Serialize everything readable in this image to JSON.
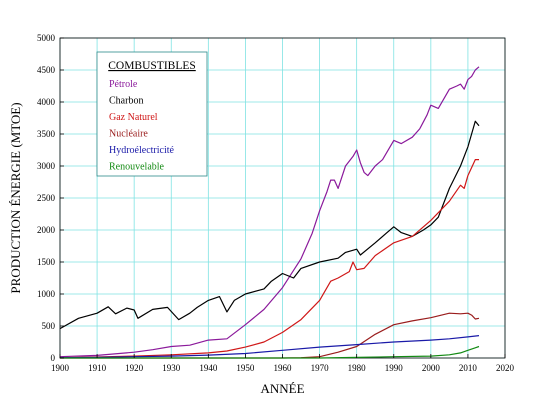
{
  "chart_data": {
    "type": "line",
    "title": "",
    "xlabel": "ANNÉE",
    "ylabel": "PRODUCTION ÉNERGIE (MTOE)",
    "xlim": [
      1900,
      2020
    ],
    "ylim": [
      0,
      5000
    ],
    "xticks": [
      1900,
      1910,
      1920,
      1930,
      1940,
      1950,
      1960,
      1970,
      1980,
      1990,
      2000,
      2010,
      2020
    ],
    "yticks": [
      0,
      500,
      1000,
      1500,
      2000,
      2500,
      3000,
      3500,
      4000,
      4500,
      5000
    ],
    "grid": true,
    "legend": {
      "title": "COMBUSTIBLES",
      "placement": "top-left"
    },
    "series": [
      {
        "name": "Pétrole",
        "color": "#8b1a9b",
        "x": [
          1900,
          1910,
          1920,
          1925,
          1930,
          1935,
          1940,
          1945,
          1950,
          1955,
          1960,
          1965,
          1968,
          1970,
          1972,
          1973,
          1974,
          1975,
          1977,
          1979,
          1980,
          1981,
          1982,
          1983,
          1985,
          1987,
          1990,
          1992,
          1995,
          1997,
          1999,
          2000,
          2002,
          2005,
          2007,
          2008,
          2009,
          2010,
          2011,
          2012,
          2013
        ],
        "y": [
          20,
          40,
          90,
          130,
          180,
          200,
          280,
          300,
          520,
          760,
          1100,
          1550,
          1950,
          2300,
          2600,
          2780,
          2780,
          2650,
          3000,
          3150,
          3250,
          3050,
          2900,
          2850,
          3000,
          3100,
          3400,
          3350,
          3450,
          3580,
          3800,
          3950,
          3900,
          4200,
          4250,
          4280,
          4200,
          4350,
          4400,
          4500,
          4550
        ]
      },
      {
        "name": "Charbon",
        "color": "#000000",
        "x": [
          1900,
          1905,
          1910,
          1913,
          1915,
          1918,
          1920,
          1921,
          1925,
          1929,
          1932,
          1935,
          1937,
          1940,
          1943,
          1945,
          1947,
          1950,
          1955,
          1957,
          1960,
          1963,
          1965,
          1970,
          1975,
          1977,
          1980,
          1981,
          1985,
          1988,
          1990,
          1992,
          1995,
          1998,
          2000,
          2002,
          2003,
          2005,
          2008,
          2010,
          2011,
          2012,
          2013
        ],
        "y": [
          460,
          620,
          700,
          800,
          690,
          780,
          750,
          620,
          760,
          790,
          600,
          700,
          790,
          900,
          960,
          720,
          900,
          1000,
          1080,
          1200,
          1320,
          1250,
          1400,
          1500,
          1560,
          1650,
          1700,
          1610,
          1800,
          1950,
          2050,
          1960,
          1900,
          2000,
          2080,
          2200,
          2350,
          2650,
          3000,
          3300,
          3500,
          3700,
          3630
        ]
      },
      {
        "name": "Gaz Naturel",
        "color": "#d01818",
        "x": [
          1900,
          1910,
          1920,
          1930,
          1940,
          1945,
          1950,
          1955,
          1960,
          1965,
          1970,
          1973,
          1975,
          1978,
          1979,
          1980,
          1982,
          1985,
          1990,
          1995,
          2000,
          2005,
          2008,
          2009,
          2010,
          2012,
          2013
        ],
        "y": [
          5,
          15,
          30,
          50,
          80,
          110,
          170,
          250,
          400,
          600,
          900,
          1200,
          1250,
          1350,
          1500,
          1380,
          1400,
          1600,
          1800,
          1900,
          2150,
          2450,
          2700,
          2650,
          2850,
          3100,
          3100
        ]
      },
      {
        "name": "Nucléaire",
        "color": "#9a1d1d",
        "x": [
          1900,
          1960,
          1965,
          1970,
          1975,
          1980,
          1985,
          1990,
          1995,
          2000,
          2005,
          2008,
          2010,
          2011,
          2012,
          2013
        ],
        "y": [
          0,
          0,
          5,
          20,
          90,
          180,
          370,
          520,
          580,
          630,
          700,
          690,
          700,
          670,
          610,
          620
        ]
      },
      {
        "name": "Hydroélectricité",
        "color": "#1a1aa8",
        "x": [
          1900,
          1910,
          1920,
          1930,
          1940,
          1950,
          1960,
          1970,
          1980,
          1990,
          2000,
          2005,
          2010,
          2013
        ],
        "y": [
          5,
          10,
          20,
          30,
          45,
          70,
          120,
          170,
          210,
          250,
          280,
          300,
          330,
          350
        ]
      },
      {
        "name": "Renouvelable",
        "color": "#138a13",
        "x": [
          1900,
          1970,
          1980,
          1990,
          2000,
          2005,
          2008,
          2010,
          2012,
          2013
        ],
        "y": [
          0,
          0,
          10,
          20,
          30,
          50,
          80,
          120,
          160,
          180
        ]
      }
    ]
  }
}
